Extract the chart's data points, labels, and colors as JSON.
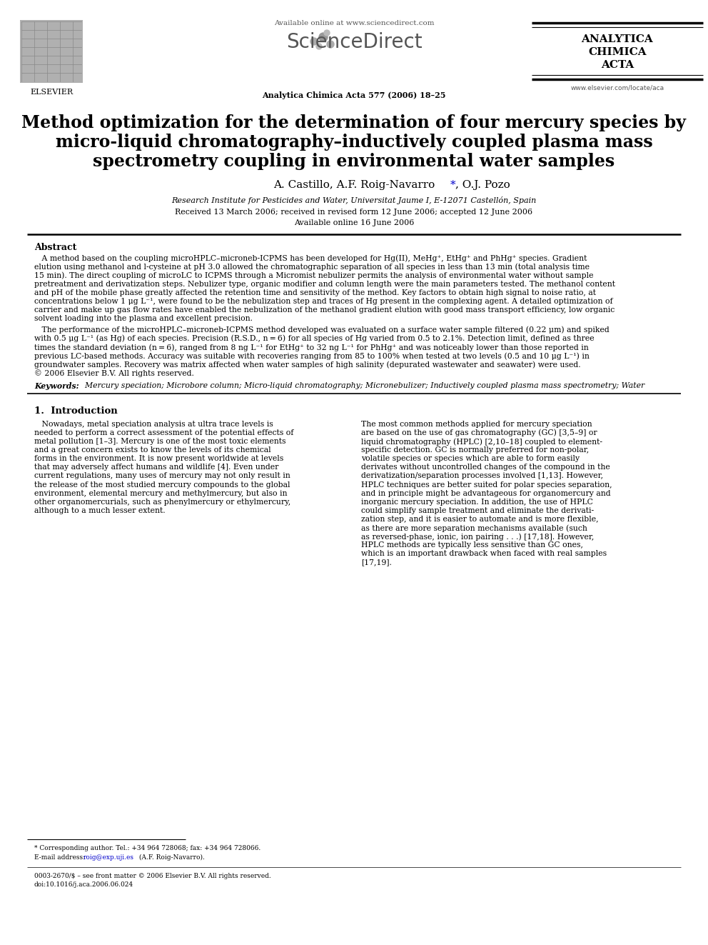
{
  "bg_color": "#ffffff",
  "title_line1": "Method optimization for the determination of four mercury species by",
  "title_line2": "micro-liquid chromatography–inductively coupled plasma mass",
  "title_line3": "spectrometry coupling in environmental water samples",
  "authors_pre": "A. Castillo, A.F. Roig-Navarro",
  "authors_post": ", O.J. Pozo",
  "affiliation": "Research Institute for Pesticides and Water, Universitat Jaume I, E-12071 Castellón, Spain",
  "received": "Received 13 March 2006; received in revised form 12 June 2006; accepted 12 June 2006",
  "available": "Available online 16 June 2006",
  "journal_header": "Available online at www.sciencedirect.com",
  "journal_name": "ScienceDirect",
  "journal_ref": "Analytica Chimica Acta 577 (2006) 18–25",
  "journal_title1": "ANALYTICA",
  "journal_title2": "CHIMICA",
  "journal_title3": "ACTA",
  "journal_url": "www.elsevier.com/locate/aca",
  "elsevier": "ELSEVIER",
  "abstract_title": "Abstract",
  "keywords_label": "Keywords:",
  "keywords_text": "  Mercury speciation; Microbore column; Micro-liquid chromatography; Micronebulizer; Inductively coupled plasma mass spectrometry; Water",
  "intro_title": "1.  Introduction",
  "footnote_star": "* Corresponding author. Tel.: +34 964 728068; fax: +34 964 728066.",
  "footnote_email_pre": "E-mail address: ",
  "footnote_email_link": "roig@exp.uji.es",
  "footnote_email_post": " (A.F. Roig-Navarro).",
  "footnote_issn": "0003-2670/$ – see front matter © 2006 Elsevier B.V. All rights reserved.",
  "footnote_doi": "doi:10.1016/j.aca.2006.06.024",
  "abs1_lines": [
    "   A method based on the coupling microHPLC–microneb-ICPMS has been developed for Hg(II), MeHg⁺, EtHg⁺ and PhHg⁺ species. Gradient",
    "elution using methanol and l-cysteine at pH 3.0 allowed the chromatographic separation of all species in less than 13 min (total analysis time",
    "15 min). The direct coupling of microLC to ICPMS through a Micromist nebulizer permits the analysis of environmental water without sample",
    "pretreatment and derivatization steps. Nebulizer type, organic modifier and column length were the main parameters tested. The methanol content",
    "and pH of the mobile phase greatly affected the retention time and sensitivity of the method. Key factors to obtain high signal to noise ratio, at",
    "concentrations below 1 μg L⁻¹, were found to be the nebulization step and traces of Hg present in the complexing agent. A detailed optimization of",
    "carrier and make up gas flow rates have enabled the nebulization of the methanol gradient elution with good mass transport efficiency, low organic",
    "solvent loading into the plasma and excellent precision."
  ],
  "abs2_lines": [
    "   The performance of the microHPLC–microneb-ICPMS method developed was evaluated on a surface water sample filtered (0.22 μm) and spiked",
    "with 0.5 μg L⁻¹ (as Hg) of each species. Precision (R.S.D., n = 6) for all species of Hg varied from 0.5 to 2.1%. Detection limit, defined as three",
    "times the standard deviation (n = 6), ranged from 8 ng L⁻¹ for EtHg⁺ to 32 ng L⁻¹ for PhHg⁺ and was noticeably lower than those reported in",
    "previous LC-based methods. Accuracy was suitable with recoveries ranging from 85 to 100% when tested at two levels (0.5 and 10 μg L⁻¹) in",
    "groundwater samples. Recovery was matrix affected when water samples of high salinity (depurated wastewater and seawater) were used.",
    "© 2006 Elsevier B.V. All rights reserved."
  ],
  "col1_lines": [
    "   Nowadays, metal speciation analysis at ultra trace levels is",
    "needed to perform a correct assessment of the potential effects of",
    "metal pollution [1–3]. Mercury is one of the most toxic elements",
    "and a great concern exists to know the levels of its chemical",
    "forms in the environment. It is now present worldwide at levels",
    "that may adversely affect humans and wildlife [4]. Even under",
    "current regulations, many uses of mercury may not only result in",
    "the release of the most studied mercury compounds to the global",
    "environment, elemental mercury and methylmercury, but also in",
    "other organomercurials, such as phenylmercury or ethylmercury,",
    "although to a much lesser extent."
  ],
  "col2_lines": [
    "The most common methods applied for mercury speciation",
    "are based on the use of gas chromatography (GC) [3,5–9] or",
    "liquid chromatography (HPLC) [2,10–18] coupled to element-",
    "specific detection. GC is normally preferred for non-polar,",
    "volatile species or species which are able to form easily",
    "derivates without uncontrolled changes of the compound in the",
    "derivatization/separation processes involved [1,13]. However,",
    "HPLC techniques are better suited for polar species separation,",
    "and in principle might be advantageous for organomercury and",
    "inorganic mercury speciation. In addition, the use of HPLC",
    "could simplify sample treatment and eliminate the derivati-",
    "zation step, and it is easier to automate and is more flexible,",
    "as there are more separation mechanisms available (such",
    "as reversed-phase, ionic, ion pairing . . .) [17,18]. However,",
    "HPLC methods are typically less sensitive than GC ones,",
    "which is an important drawback when faced with real samples",
    "[17,19]."
  ]
}
